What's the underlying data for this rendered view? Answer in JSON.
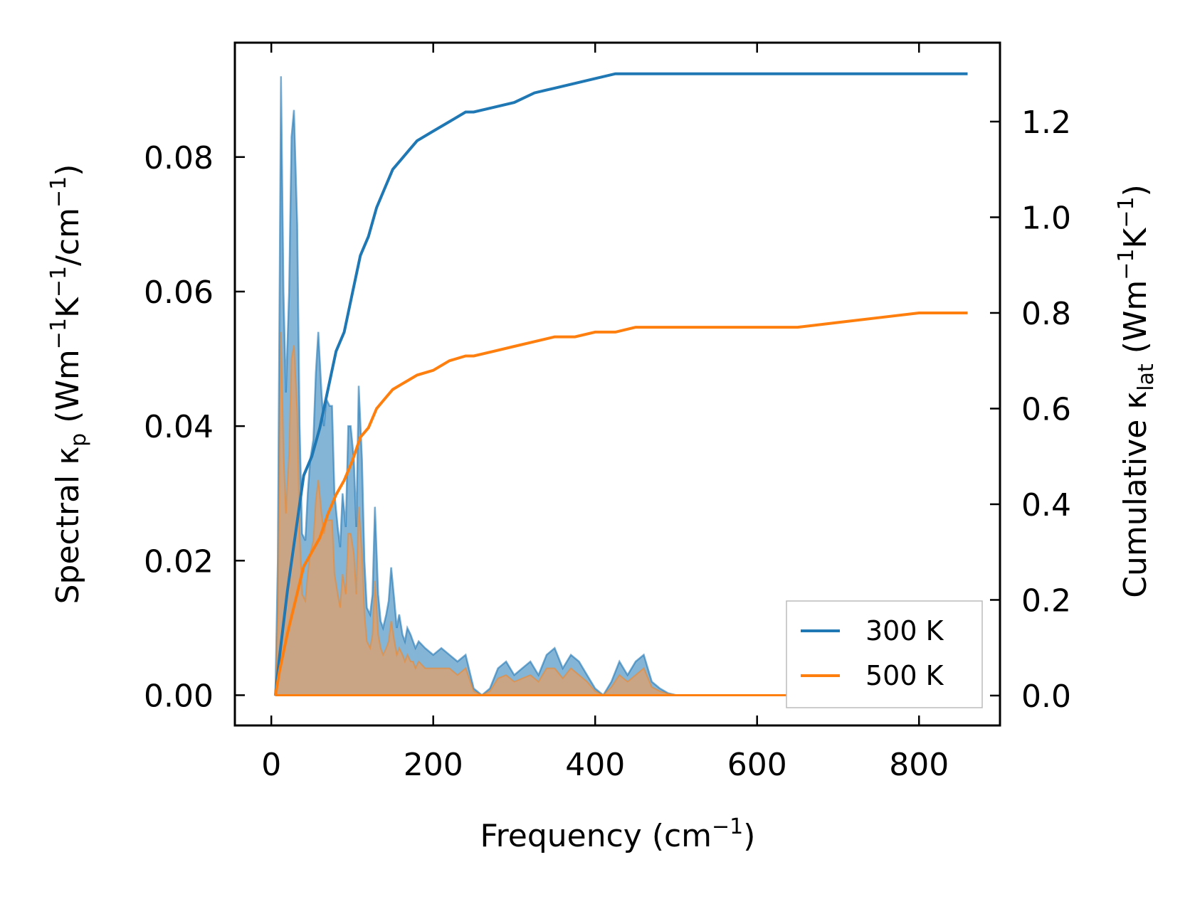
{
  "chart_data": {
    "type": "line",
    "title": "",
    "xlabel": {
      "main": "Frequency (cm",
      "sup": "−1",
      "tail": ")"
    },
    "ylabel_left": {
      "main": "Spectral κ",
      "sub": "p",
      "open": " (Wm",
      "sup1": "−1",
      "mid1": "K",
      "sup2": "−1",
      "mid2": "/cm",
      "sup3": "−1",
      "tail": ")"
    },
    "ylabel_right": {
      "main": "Cumulative κ",
      "sub": "lat",
      "open": " (Wm",
      "sup1": "−1",
      "mid1": "K",
      "sup2": "−1",
      "tail": ")"
    },
    "xlim": [
      -45,
      900
    ],
    "ylim_left": [
      -0.0045,
      0.097
    ],
    "ylim_right": [
      -0.0625,
      1.365
    ],
    "x_ticks": [
      0,
      200,
      400,
      600,
      800
    ],
    "x_tick_labels": [
      "0",
      "200",
      "400",
      "600",
      "800"
    ],
    "y_left_ticks": [
      0.0,
      0.02,
      0.04,
      0.06,
      0.08
    ],
    "y_left_tick_labels": [
      "0.00",
      "0.02",
      "0.04",
      "0.06",
      "0.08"
    ],
    "y_right_ticks": [
      0.0,
      0.2,
      0.4,
      0.6,
      0.8,
      1.0,
      1.2
    ],
    "y_right_tick_labels": [
      "0.0",
      "0.2",
      "0.4",
      "0.6",
      "0.8",
      "1.0",
      "1.2"
    ],
    "legend": {
      "position": "lower right",
      "entries": [
        "300 K",
        "500 K"
      ]
    },
    "colors": {
      "s300": "#1f77b4",
      "s500": "#ff7f0e",
      "fill300": "#1f77b4",
      "fill500": "#e0a06a"
    },
    "spectral_300K": {
      "x": [
        5,
        8,
        12,
        15,
        18,
        22,
        25,
        28,
        32,
        35,
        38,
        42,
        45,
        48,
        52,
        55,
        58,
        62,
        65,
        68,
        72,
        75,
        78,
        82,
        85,
        88,
        92,
        95,
        98,
        102,
        105,
        108,
        112,
        115,
        118,
        122,
        125,
        128,
        132,
        135,
        138,
        142,
        145,
        148,
        152,
        155,
        158,
        162,
        165,
        168,
        172,
        175,
        178,
        182,
        190,
        200,
        210,
        220,
        230,
        240,
        250,
        260,
        270,
        280,
        290,
        300,
        310,
        320,
        330,
        340,
        350,
        360,
        370,
        380,
        390,
        400,
        410,
        420,
        430,
        440,
        450,
        460,
        470,
        480,
        490,
        500,
        520,
        560,
        600,
        650,
        680,
        700,
        720,
        740,
        760,
        780,
        800,
        820,
        840,
        860
      ],
      "y": [
        0.0,
        0.02,
        0.092,
        0.06,
        0.045,
        0.06,
        0.083,
        0.087,
        0.07,
        0.04,
        0.024,
        0.023,
        0.03,
        0.035,
        0.038,
        0.048,
        0.054,
        0.045,
        0.04,
        0.044,
        0.043,
        0.043,
        0.03,
        0.025,
        0.022,
        0.03,
        0.025,
        0.04,
        0.04,
        0.035,
        0.025,
        0.046,
        0.035,
        0.02,
        0.013,
        0.012,
        0.015,
        0.028,
        0.015,
        0.011,
        0.01,
        0.012,
        0.014,
        0.019,
        0.014,
        0.01,
        0.012,
        0.009,
        0.008,
        0.01,
        0.009,
        0.008,
        0.007,
        0.008,
        0.007,
        0.006,
        0.007,
        0.006,
        0.005,
        0.006,
        0.001,
        0.0,
        0.001,
        0.004,
        0.005,
        0.003,
        0.004,
        0.005,
        0.003,
        0.006,
        0.007,
        0.004,
        0.006,
        0.005,
        0.003,
        0.001,
        0.0,
        0.002,
        0.005,
        0.003,
        0.005,
        0.006,
        0.002,
        0.001,
        0.0003,
        0.0,
        0.0,
        0.0,
        0.0,
        0.0,
        0.0005,
        0.0008,
        0.0006,
        0.0009,
        0.0005,
        0.0003,
        0.0004,
        0.0005,
        0.0002,
        0.0
      ]
    },
    "spectral_500K": {
      "x": [
        5,
        8,
        12,
        15,
        18,
        22,
        25,
        28,
        32,
        35,
        38,
        42,
        45,
        48,
        52,
        55,
        58,
        62,
        65,
        68,
        72,
        75,
        78,
        82,
        85,
        88,
        92,
        95,
        98,
        102,
        105,
        108,
        112,
        115,
        118,
        122,
        125,
        128,
        132,
        135,
        138,
        142,
        145,
        148,
        152,
        155,
        158,
        162,
        165,
        168,
        172,
        175,
        178,
        182,
        190,
        200,
        210,
        220,
        230,
        240,
        250,
        260,
        270,
        280,
        290,
        300,
        310,
        320,
        330,
        340,
        350,
        360,
        370,
        380,
        390,
        400,
        410,
        420,
        430,
        440,
        450,
        460,
        470,
        480,
        490,
        500,
        520,
        560,
        600,
        650,
        680,
        700,
        710,
        720,
        740,
        760,
        780,
        800,
        820,
        840,
        860
      ],
      "y": [
        0.0,
        0.012,
        0.054,
        0.036,
        0.027,
        0.036,
        0.05,
        0.052,
        0.042,
        0.024,
        0.015,
        0.014,
        0.018,
        0.021,
        0.023,
        0.029,
        0.032,
        0.027,
        0.024,
        0.026,
        0.026,
        0.026,
        0.018,
        0.015,
        0.013,
        0.018,
        0.015,
        0.024,
        0.024,
        0.021,
        0.015,
        0.028,
        0.021,
        0.012,
        0.008,
        0.007,
        0.009,
        0.017,
        0.009,
        0.007,
        0.006,
        0.007,
        0.008,
        0.011,
        0.008,
        0.006,
        0.007,
        0.006,
        0.005,
        0.006,
        0.005,
        0.005,
        0.004,
        0.005,
        0.004,
        0.004,
        0.004,
        0.004,
        0.003,
        0.004,
        0.0006,
        0.0,
        0.0006,
        0.0025,
        0.003,
        0.002,
        0.0025,
        0.003,
        0.002,
        0.004,
        0.004,
        0.0025,
        0.004,
        0.003,
        0.002,
        0.0006,
        0.0,
        0.0012,
        0.003,
        0.002,
        0.003,
        0.004,
        0.0012,
        0.0006,
        0.0002,
        0.0,
        0.0,
        0.0,
        0.0,
        0.0,
        0.001,
        0.002,
        0.0028,
        0.002,
        0.0015,
        0.0018,
        0.001,
        0.0013,
        0.0012,
        0.0008,
        0.0
      ]
    },
    "cumulative_300K": {
      "x": [
        5,
        10,
        20,
        30,
        40,
        50,
        60,
        70,
        80,
        90,
        100,
        110,
        120,
        130,
        140,
        150,
        160,
        170,
        180,
        200,
        220,
        240,
        250,
        275,
        300,
        325,
        350,
        375,
        400,
        425,
        450,
        475,
        500,
        525,
        550,
        575,
        600,
        650,
        700,
        750,
        800,
        850,
        860
      ],
      "y": [
        0.0,
        0.08,
        0.22,
        0.34,
        0.46,
        0.5,
        0.56,
        0.64,
        0.72,
        0.76,
        0.84,
        0.92,
        0.96,
        1.02,
        1.06,
        1.1,
        1.12,
        1.14,
        1.16,
        1.18,
        1.2,
        1.22,
        1.22,
        1.23,
        1.24,
        1.26,
        1.27,
        1.28,
        1.29,
        1.3,
        1.3,
        1.3,
        1.3,
        1.3,
        1.3,
        1.3,
        1.3,
        1.3,
        1.3,
        1.3,
        1.3,
        1.3,
        1.3
      ]
    },
    "cumulative_500K": {
      "x": [
        5,
        10,
        20,
        30,
        40,
        50,
        60,
        70,
        80,
        90,
        100,
        110,
        120,
        130,
        140,
        150,
        160,
        170,
        180,
        200,
        220,
        240,
        250,
        275,
        300,
        325,
        350,
        375,
        400,
        425,
        450,
        475,
        500,
        525,
        550,
        575,
        600,
        650,
        700,
        750,
        800,
        850,
        860
      ],
      "y": [
        0.0,
        0.05,
        0.13,
        0.2,
        0.27,
        0.3,
        0.33,
        0.38,
        0.42,
        0.45,
        0.49,
        0.54,
        0.56,
        0.6,
        0.62,
        0.64,
        0.65,
        0.66,
        0.67,
        0.68,
        0.7,
        0.71,
        0.71,
        0.72,
        0.73,
        0.74,
        0.75,
        0.75,
        0.76,
        0.76,
        0.77,
        0.77,
        0.77,
        0.77,
        0.77,
        0.77,
        0.77,
        0.77,
        0.78,
        0.79,
        0.8,
        0.8,
        0.8
      ]
    }
  }
}
